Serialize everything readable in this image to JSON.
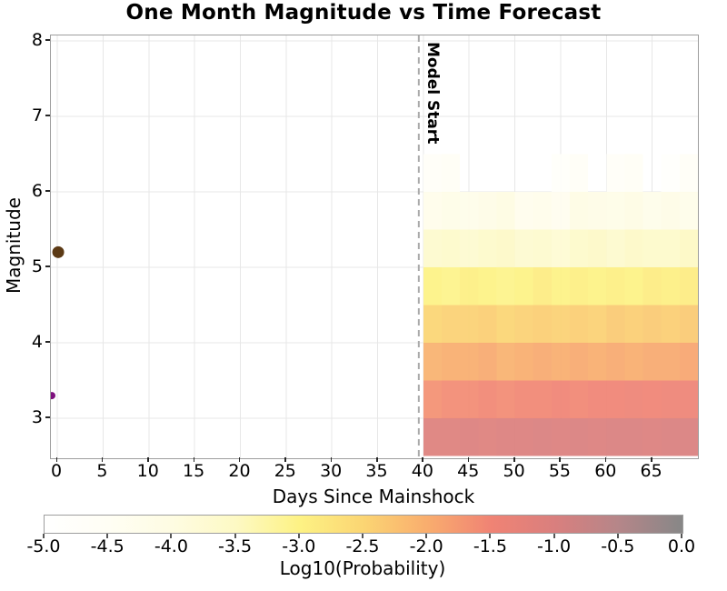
{
  "chart_data": {
    "type": "heatmap",
    "title": "One Month Magnitude vs Time Forecast",
    "xlabel": "Days Since Mainshock",
    "ylabel": "Magnitude",
    "xlim": [
      -0.7,
      70.0
    ],
    "ylim": [
      2.47,
      8.07
    ],
    "grid": true,
    "grid_color": "#e7e7e7",
    "frame_color": "#9e9e9e",
    "x_ticks": [
      0,
      5,
      10,
      15,
      20,
      25,
      30,
      35,
      40,
      45,
      50,
      55,
      60,
      65
    ],
    "x_tick_labels": [
      "0",
      "5",
      "10",
      "15",
      "20",
      "25",
      "30",
      "35",
      "40",
      "45",
      "50",
      "55",
      "60",
      "65"
    ],
    "y_ticks": [
      3,
      4,
      5,
      6,
      7,
      8
    ],
    "y_tick_labels": [
      "3",
      "4",
      "5",
      "6",
      "7",
      "8"
    ],
    "model_start": {
      "label": "Model Start",
      "x_day": 39.5,
      "line_color": "#aaaaaa",
      "line_style": "dashed"
    },
    "heatmap": {
      "day_start": 40,
      "day_end": 70,
      "day_bin_width": 2,
      "mag_top": 6.5,
      "mag_bottom": 2.5,
      "mag_bin_height": 0.5,
      "rows_mag_ranges_top_to_bottom": [
        "6.0-6.5",
        "5.5-6.0",
        "5.0-5.5",
        "4.5-5.0",
        "4.0-4.5",
        "3.5-4.0",
        "3.0-3.5",
        "2.5-3.0"
      ],
      "values_log10_prob": [
        [
          -4.7,
          -4.55,
          null,
          null,
          null,
          null,
          null,
          -4.75,
          -4.6,
          null,
          -4.7,
          -4.55,
          null,
          -4.85,
          -4.6
        ],
        [
          -4.25,
          -4.15,
          -4.2,
          -4.1,
          -4.0,
          -4.3,
          -4.25,
          -4.35,
          -4.05,
          -4.1,
          -4.15,
          -4.05,
          -4.2,
          -4.1,
          -4.2
        ],
        [
          -3.65,
          -3.6,
          -3.7,
          -3.6,
          -3.55,
          -3.7,
          -3.65,
          -3.75,
          -3.6,
          -3.55,
          -3.65,
          -3.55,
          -3.6,
          -3.6,
          -3.5
        ],
        [
          -3.0,
          -3.05,
          -2.95,
          -3.0,
          -3.05,
          -3.0,
          -2.9,
          -3.0,
          -2.95,
          -3.0,
          -2.95,
          -3.0,
          -2.9,
          -2.95,
          -2.9
        ],
        [
          -2.5,
          -2.45,
          -2.45,
          -2.4,
          -2.5,
          -2.45,
          -2.4,
          -2.45,
          -2.4,
          -2.45,
          -2.35,
          -2.4,
          -2.35,
          -2.4,
          -2.35
        ],
        [
          -2.05,
          -2.0,
          -2.0,
          -1.95,
          -2.05,
          -2.0,
          -1.95,
          -2.0,
          -1.95,
          -2.0,
          -1.95,
          -2.0,
          -1.95,
          -1.95,
          -1.9
        ],
        [
          -1.65,
          -1.6,
          -1.6,
          -1.55,
          -1.6,
          -1.55,
          -1.55,
          -1.5,
          -1.55,
          -1.5,
          -1.5,
          -1.45,
          -1.5,
          -1.45,
          -1.45
        ],
        [
          -1.1,
          -1.1,
          -1.05,
          -1.1,
          -1.05,
          -1.05,
          -1.0,
          -1.05,
          -1.0,
          -1.05,
          -1.0,
          -1.0,
          -1.05,
          -1.0,
          -1.0
        ]
      ]
    },
    "observed_events": [
      {
        "day": 0.1,
        "magnitude": 5.2,
        "color": "#5c3a15",
        "radius_px": 6.5
      },
      {
        "day": -0.6,
        "magnitude": 3.3,
        "color": "#7e107e",
        "radius_px": 4
      }
    ],
    "colorbar": {
      "label": "Log10(Probability)",
      "range": [
        -5,
        0
      ],
      "ticks": [
        -5.0,
        -4.5,
        -4.0,
        -3.5,
        -3.0,
        -2.5,
        -2.0,
        -1.5,
        -1.0,
        -0.5,
        0.0
      ],
      "tick_labels": [
        "-5.0",
        "-4.5",
        "-4.0",
        "-3.5",
        "-3.0",
        "-2.5",
        "-2.0",
        "-1.5",
        "-1.0",
        "-0.5",
        "0.0"
      ],
      "colormap_stops": [
        {
          "v": -5.0,
          "color": "#ffffff"
        },
        {
          "v": -4.5,
          "color": "#fffef4"
        },
        {
          "v": -4.0,
          "color": "#fefce2"
        },
        {
          "v": -3.5,
          "color": "#fdf9c4"
        },
        {
          "v": -3.0,
          "color": "#fdf284"
        },
        {
          "v": -2.5,
          "color": "#fbd573"
        },
        {
          "v": -2.0,
          "color": "#f9ad6e"
        },
        {
          "v": -1.5,
          "color": "#f08374"
        },
        {
          "v": -1.0,
          "color": "#d97f7e"
        },
        {
          "v": -0.5,
          "color": "#b58689"
        },
        {
          "v": 0.0,
          "color": "#878787"
        }
      ]
    }
  }
}
